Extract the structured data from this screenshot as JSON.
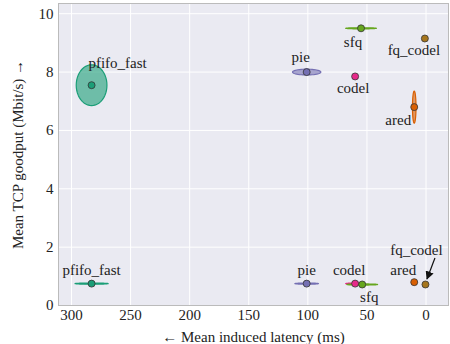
{
  "chart_data": {
    "type": "scatter",
    "x_label": "Mean induced latency (ms)",
    "y_label": "Mean TCP goodput (Mbit/s)",
    "xlim": [
      311,
      -19
    ],
    "ylim": [
      0,
      10.35
    ],
    "xticks": [
      300,
      250,
      200,
      150,
      100,
      50,
      0
    ],
    "yticks": [
      0,
      2,
      4,
      6,
      8,
      10
    ],
    "grid": true,
    "marker": "circle",
    "series": [
      {
        "name": "pfifo_fast",
        "color": "#1b9e77",
        "x": [
          283,
          283
        ],
        "values": [
          7.55,
          0.75
        ],
        "x_err": [
          13,
          14
        ],
        "y_err": [
          0.7,
          0.02
        ]
      },
      {
        "name": "pie",
        "color": "#7570b3",
        "x": [
          101,
          101
        ],
        "values": [
          8.0,
          0.75
        ],
        "x_err": [
          12,
          10
        ],
        "y_err": [
          0.1,
          0.02
        ]
      },
      {
        "name": "codel",
        "color": "#e7298a",
        "x": [
          60,
          60
        ],
        "values": [
          7.85,
          0.75
        ],
        "x_err": [
          1,
          8
        ],
        "y_err": [
          0.05,
          0.02
        ]
      },
      {
        "name": "sfq",
        "color": "#66a61e",
        "x": [
          55,
          54
        ],
        "values": [
          9.5,
          0.72
        ],
        "x_err": [
          13,
          13
        ],
        "y_err": [
          0.02,
          0.02
        ]
      },
      {
        "name": "fq_codel",
        "color": "#a6761d",
        "x": [
          1,
          0.5
        ],
        "values": [
          9.15,
          0.72
        ],
        "x_err": [
          1,
          1
        ],
        "y_err": [
          0.03,
          0.02
        ]
      },
      {
        "name": "ared",
        "color": "#d95f02",
        "x": [
          10,
          10
        ],
        "values": [
          6.8,
          0.8
        ],
        "x_err": [
          1.5,
          1
        ],
        "y_err": [
          0.55,
          0.02
        ]
      }
    ]
  }
}
